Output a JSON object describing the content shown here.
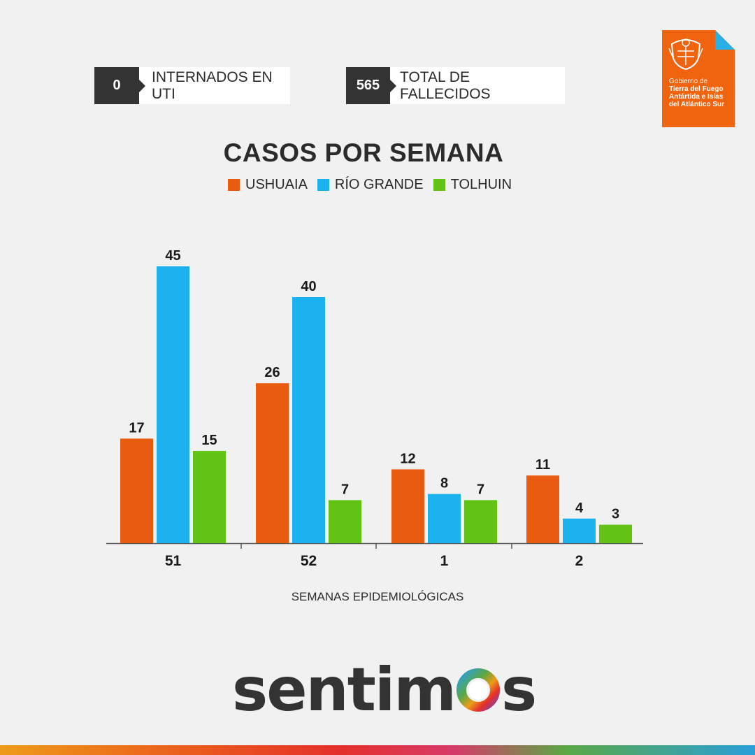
{
  "stats": [
    {
      "value": "0",
      "label": "INTERNADOS EN UTI"
    },
    {
      "value": "565",
      "label": "TOTAL DE FALLECIDOS"
    }
  ],
  "gov_logo": {
    "lines": [
      "Gobierno de",
      "Tierra del Fuego",
      "Antártida e Islas",
      "del Atlántico Sur"
    ],
    "color": "#f1640f",
    "accent": "#29aee6"
  },
  "brand": {
    "name": "sentimos"
  },
  "colors": {
    "ushuaia": "#e95c0f",
    "rio_grande": "#1cb1ef",
    "tolhuin": "#63c314",
    "text": "#2b2b2b"
  },
  "chart_data": {
    "type": "bar",
    "title": "CASOS POR SEMANA",
    "xlabel": "SEMANAS EPIDEMIOLÓGICAS",
    "ylabel": "",
    "categories": [
      "51",
      "52",
      "1",
      "2"
    ],
    "series": [
      {
        "name": "USHUAIA",
        "color": "#e95c0f",
        "values": [
          17,
          26,
          12,
          11
        ]
      },
      {
        "name": "RÍO GRANDE",
        "color": "#1cb1ef",
        "values": [
          45,
          40,
          8,
          4
        ]
      },
      {
        "name": "TOLHUIN",
        "color": "#63c314",
        "values": [
          15,
          7,
          7,
          3
        ]
      }
    ],
    "ylim": [
      0,
      45
    ],
    "grid": false,
    "legend": "top"
  }
}
